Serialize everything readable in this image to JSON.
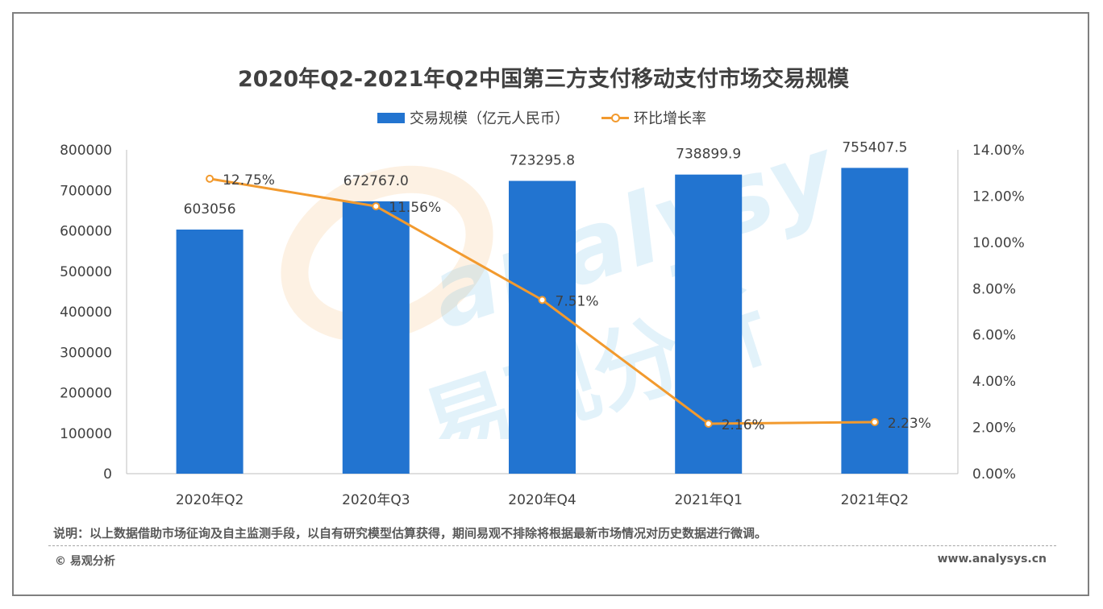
{
  "title": "2020年Q2-2021年Q2中国第三方支付移动支付市场交易规模",
  "legend": {
    "bar_label": "交易规模（亿元人民币）",
    "line_label": "环比增长率"
  },
  "note": "说明：以上数据借助市场征询及自主监测手段，以自有研究模型估算获得，期间易观不排除将根据最新市场情况对历史数据进行微调。",
  "copyright": "© 易观分析",
  "site": "www.analysys.cn",
  "watermark": {
    "latin": "analysys",
    "cjk": "易观分析"
  },
  "colors": {
    "bar": "#2274d0",
    "line": "#f29a2e"
  },
  "chart_data": {
    "type": "bar",
    "categories": [
      "2020年Q2",
      "2020年Q3",
      "2020年Q4",
      "2021年Q1",
      "2021年Q2"
    ],
    "series": [
      {
        "name": "交易规模（亿元人民币）",
        "type": "bar",
        "axis": "left",
        "values": [
          603056,
          672767.0,
          723295.8,
          738899.9,
          755407.5
        ],
        "labels": [
          "603056",
          "672767.0",
          "723295.8",
          "738899.9",
          "755407.5"
        ]
      },
      {
        "name": "环比增长率",
        "type": "line",
        "axis": "right",
        "values": [
          12.75,
          11.56,
          7.51,
          2.16,
          2.23
        ],
        "labels": [
          "12.75%",
          "11.56%",
          "7.51%",
          "2.16%",
          "2.23%"
        ]
      }
    ],
    "y_left": {
      "min": 0,
      "max": 800000,
      "ticks": [
        "0",
        "100000",
        "200000",
        "300000",
        "400000",
        "500000",
        "600000",
        "700000",
        "800000"
      ]
    },
    "y_right": {
      "min": 0,
      "max": 14,
      "ticks": [
        "0.00%",
        "2.00%",
        "4.00%",
        "6.00%",
        "8.00%",
        "10.00%",
        "12.00%",
        "14.00%"
      ]
    },
    "grid": false,
    "legend_position": "top-center"
  }
}
